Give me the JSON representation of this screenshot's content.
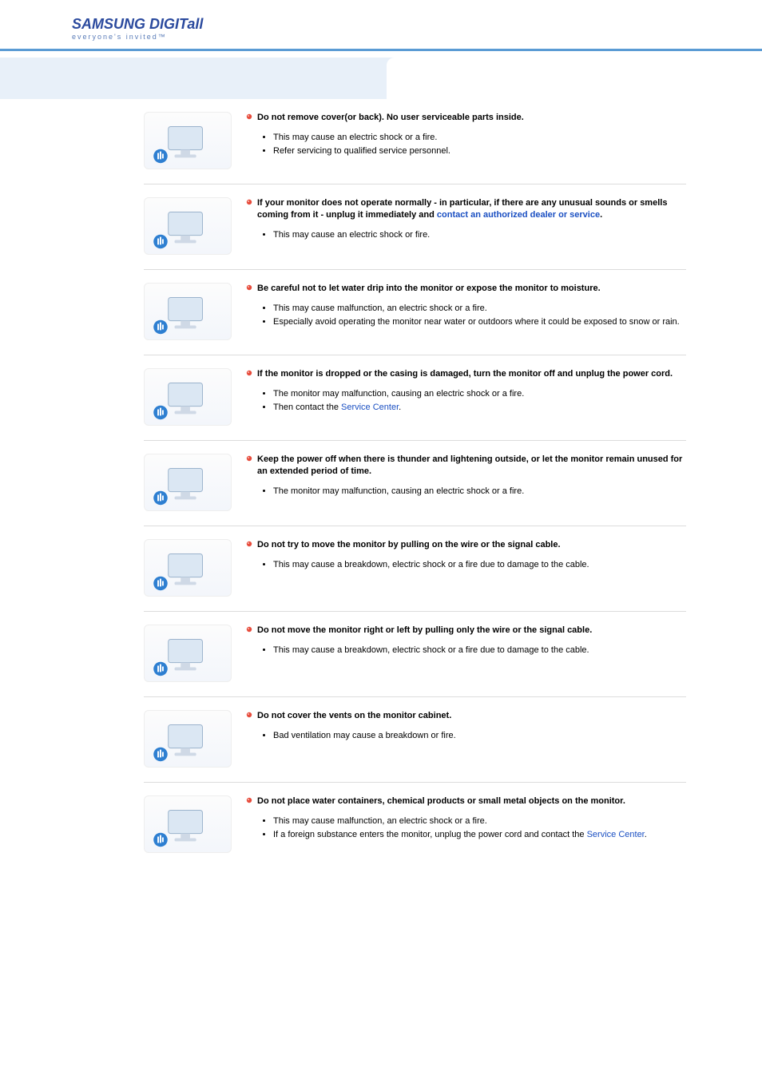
{
  "logo": {
    "brand": "SAMSUNG DIGIT",
    "brand_ital": "all",
    "sub": "everyone's invited™"
  },
  "link_color": "#1a4fc2",
  "sections": [
    {
      "heading": "Do not remove cover(or back). No user serviceable parts inside.",
      "items": [
        "This may cause an electric shock or a fire.",
        "Refer servicing to qualified service personnel."
      ]
    },
    {
      "heading_prefix": "If your monitor does not operate normally - in particular, if there are any unusual sounds or smells coming from it - unplug it immediately and ",
      "heading_link": "contact an authorized dealer or service",
      "heading_suffix": ".",
      "items": [
        "This may cause an electric shock or fire."
      ]
    },
    {
      "heading": "Be careful not to let water drip into the monitor or expose the monitor to moisture.",
      "items": [
        "This may cause malfunction, an electric shock or a fire.",
        "Especially avoid operating the monitor near water or outdoors where it could be exposed to snow or rain."
      ]
    },
    {
      "heading": "If the monitor is dropped or the casing is damaged, turn the monitor off and unplug the power cord.",
      "items": [
        "The monitor may malfunction, causing an electric shock or a fire.",
        {
          "prefix": "Then contact the ",
          "link": "Service Center",
          "suffix": "."
        }
      ]
    },
    {
      "heading": "Keep the power off when there is thunder and lightening outside, or let the monitor remain unused for an extended period of time.",
      "items": [
        "The monitor may malfunction, causing an electric shock or a fire."
      ]
    },
    {
      "heading": "Do not try to move the monitor by pulling on the wire or the signal cable.",
      "items": [
        "This may cause a breakdown, electric shock or a fire due to damage to the cable."
      ]
    },
    {
      "heading": "Do not move the monitor right or left by pulling only the wire or the signal cable.",
      "items": [
        "This may cause a breakdown, electric shock or a fire due to damage to the cable."
      ]
    },
    {
      "heading": "Do not cover the vents on the monitor cabinet.",
      "items": [
        "Bad ventilation may cause a breakdown or fire."
      ]
    },
    {
      "heading": "Do not place water containers, chemical products or small metal objects on the monitor.",
      "items": [
        "This may cause malfunction, an electric shock or a fire.",
        {
          "prefix": "If a foreign substance enters the monitor, unplug the power cord and contact the ",
          "link": "Service Center",
          "suffix": "."
        }
      ]
    }
  ]
}
